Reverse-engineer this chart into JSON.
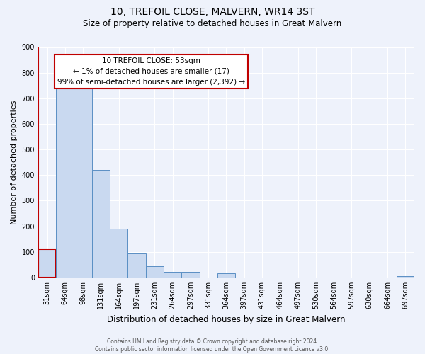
{
  "title": "10, TREFOIL CLOSE, MALVERN, WR14 3ST",
  "subtitle": "Size of property relative to detached houses in Great Malvern",
  "bar_labels": [
    "31sqm",
    "64sqm",
    "98sqm",
    "131sqm",
    "164sqm",
    "197sqm",
    "231sqm",
    "264sqm",
    "297sqm",
    "331sqm",
    "364sqm",
    "397sqm",
    "431sqm",
    "464sqm",
    "497sqm",
    "530sqm",
    "564sqm",
    "597sqm",
    "630sqm",
    "664sqm",
    "697sqm"
  ],
  "bar_values": [
    110,
    750,
    750,
    420,
    190,
    93,
    45,
    22,
    22,
    0,
    17,
    0,
    0,
    0,
    0,
    0,
    0,
    0,
    0,
    0,
    5
  ],
  "bar_color": "#c9d9f0",
  "bar_edge_color": "#5a8fc4",
  "highlight_bar_index": 0,
  "highlight_edge_color": "#c00000",
  "vline_color": "#c00000",
  "xlabel": "Distribution of detached houses by size in Great Malvern",
  "ylabel": "Number of detached properties",
  "ylim": [
    0,
    900
  ],
  "yticks": [
    0,
    100,
    200,
    300,
    400,
    500,
    600,
    700,
    800,
    900
  ],
  "annotation_title": "10 TREFOIL CLOSE: 53sqm",
  "annotation_line1": "← 1% of detached houses are smaller (17)",
  "annotation_line2": "99% of semi-detached houses are larger (2,392) →",
  "annotation_box_color": "#ffffff",
  "annotation_box_edge_color": "#c00000",
  "footer1": "Contains HM Land Registry data © Crown copyright and database right 2024.",
  "footer2": "Contains public sector information licensed under the Open Government Licence v3.0.",
  "background_color": "#eef2fb",
  "grid_color": "#ffffff",
  "title_fontsize": 10,
  "subtitle_fontsize": 8.5,
  "xlabel_fontsize": 8.5,
  "ylabel_fontsize": 8,
  "tick_fontsize": 7,
  "annotation_fontsize": 7.5,
  "footer_fontsize": 5.5
}
